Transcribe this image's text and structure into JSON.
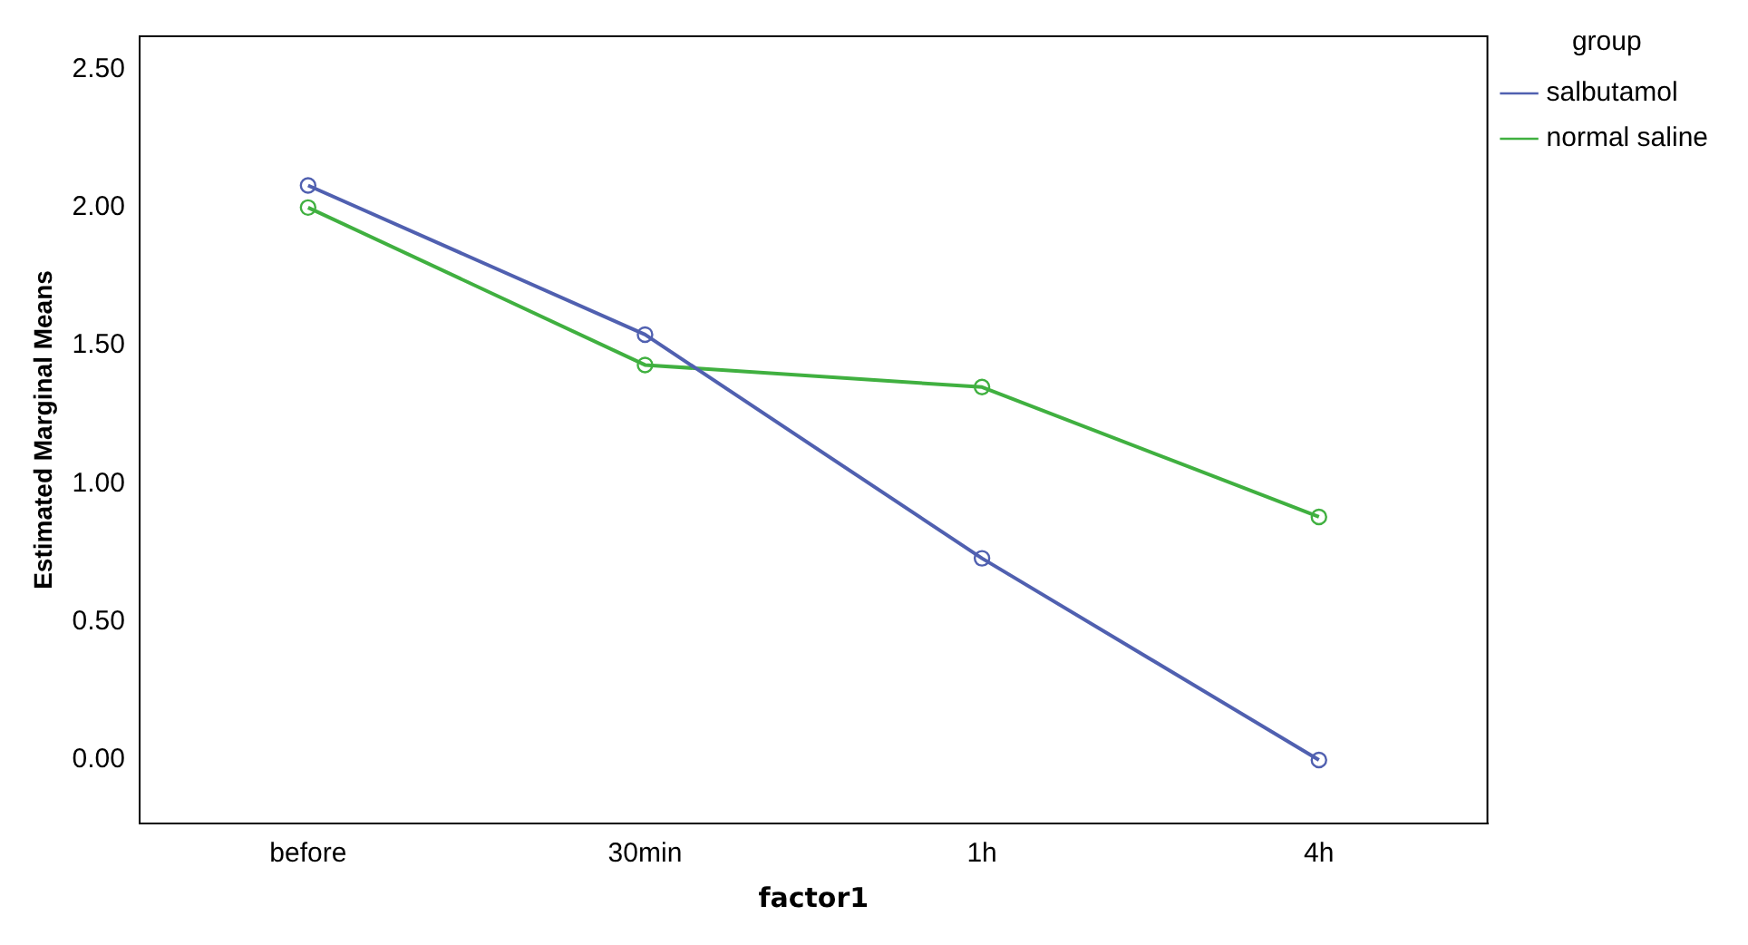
{
  "chart_data": {
    "type": "line",
    "xlabel": "factor1",
    "ylabel": "Estimated Marginal Means",
    "legend_title": "group",
    "categories": [
      "before",
      "30min",
      "1h",
      "4h"
    ],
    "series": [
      {
        "name": "salbutamol",
        "color": "#5060b0",
        "values": [
          2.08,
          1.54,
          0.73,
          0
        ]
      },
      {
        "name": "normal saline",
        "color": "#40b040",
        "values": [
          2.0,
          1.43,
          1.35,
          0.88
        ]
      }
    ],
    "ylim": [
      -0.23,
      2.62
    ],
    "yticks": [
      {
        "value": 0,
        "label": "0.00"
      },
      {
        "value": 0.5,
        "label": "0.50"
      },
      {
        "value": 1,
        "label": "1.00"
      },
      {
        "value": 1.5,
        "label": "1.50"
      },
      {
        "value": 2,
        "label": "2.00"
      },
      {
        "value": 2.5,
        "label": "2.50"
      }
    ],
    "grid": false,
    "legend": "top right",
    "marker": "circle",
    "line_style": "solid"
  }
}
